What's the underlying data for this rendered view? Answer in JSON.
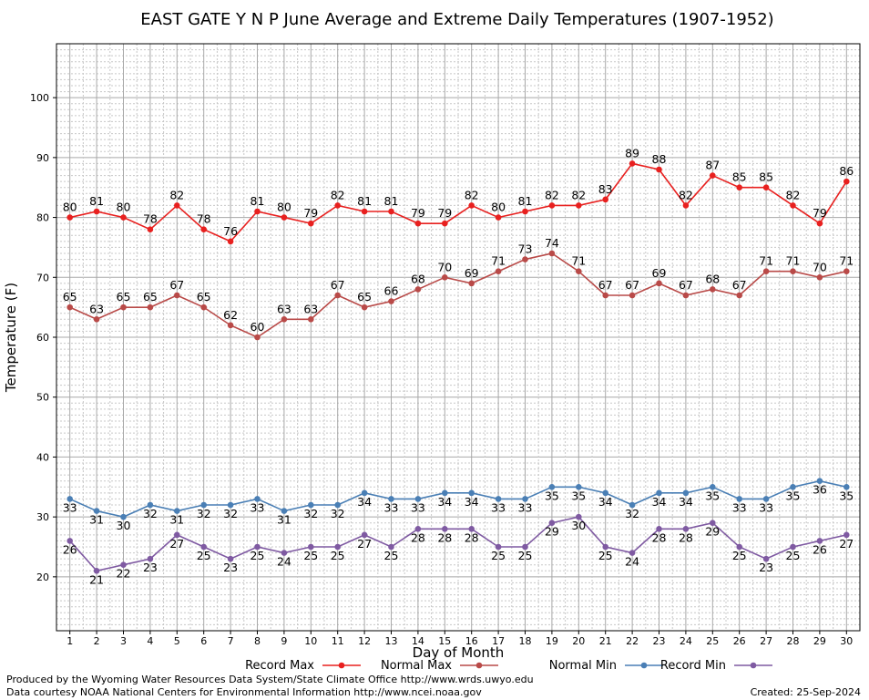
{
  "chart_data": {
    "type": "line",
    "title": "EAST GATE Y N P June Average and Extreme Daily Temperatures (1907-1952)",
    "xlabel": "Day of Month",
    "ylabel": "Temperature (F)",
    "xlim": [
      0.5,
      30.5
    ],
    "ylim": [
      11,
      109
    ],
    "y_ticks": [
      20,
      30,
      40,
      50,
      60,
      70,
      80,
      90,
      100
    ],
    "x": [
      1,
      2,
      3,
      4,
      5,
      6,
      7,
      8,
      9,
      10,
      11,
      12,
      13,
      14,
      15,
      16,
      17,
      18,
      19,
      20,
      21,
      22,
      23,
      24,
      25,
      26,
      27,
      28,
      29,
      30
    ],
    "grid": true,
    "legend_position": "bottom",
    "series": [
      {
        "name": "Record Max",
        "color": "#e8201f",
        "label_position": "above",
        "values": [
          80,
          81,
          80,
          78,
          82,
          78,
          76,
          81,
          80,
          79,
          82,
          81,
          81,
          79,
          79,
          82,
          80,
          81,
          82,
          82,
          83,
          89,
          88,
          82,
          87,
          85,
          85,
          82,
          79,
          86
        ]
      },
      {
        "name": "Normal Max",
        "color": "#b94a48",
        "label_position": "above",
        "values": [
          65,
          63,
          65,
          65,
          67,
          65,
          62,
          60,
          63,
          63,
          67,
          65,
          66,
          68,
          70,
          69,
          71,
          73,
          74,
          71,
          67,
          67,
          69,
          67,
          68,
          67,
          71,
          71,
          70,
          71
        ]
      },
      {
        "name": "Normal Min",
        "color": "#4a7fb5",
        "label_position": "below",
        "values": [
          33,
          31,
          30,
          32,
          31,
          32,
          32,
          33,
          31,
          32,
          32,
          34,
          33,
          33,
          34,
          34,
          33,
          33,
          35,
          35,
          34,
          32,
          34,
          34,
          35,
          33,
          33,
          35,
          36,
          35
        ]
      },
      {
        "name": "Record Min",
        "color": "#7f5aa2",
        "label_position": "below",
        "values": [
          26,
          21,
          22,
          23,
          27,
          25,
          23,
          25,
          24,
          25,
          25,
          27,
          25,
          28,
          28,
          28,
          25,
          25,
          29,
          30,
          25,
          24,
          28,
          28,
          29,
          25,
          23,
          25,
          26,
          27
        ]
      }
    ]
  },
  "footer": {
    "line1": "Produced by the Wyoming Water Resources Data System/State Climate Office http://www.wrds.uwyo.edu",
    "line2": "Data courtesy NOAA National Centers for Environmental Information http://www.ncei.noaa.gov",
    "created": "Created:  25-Sep-2024"
  }
}
